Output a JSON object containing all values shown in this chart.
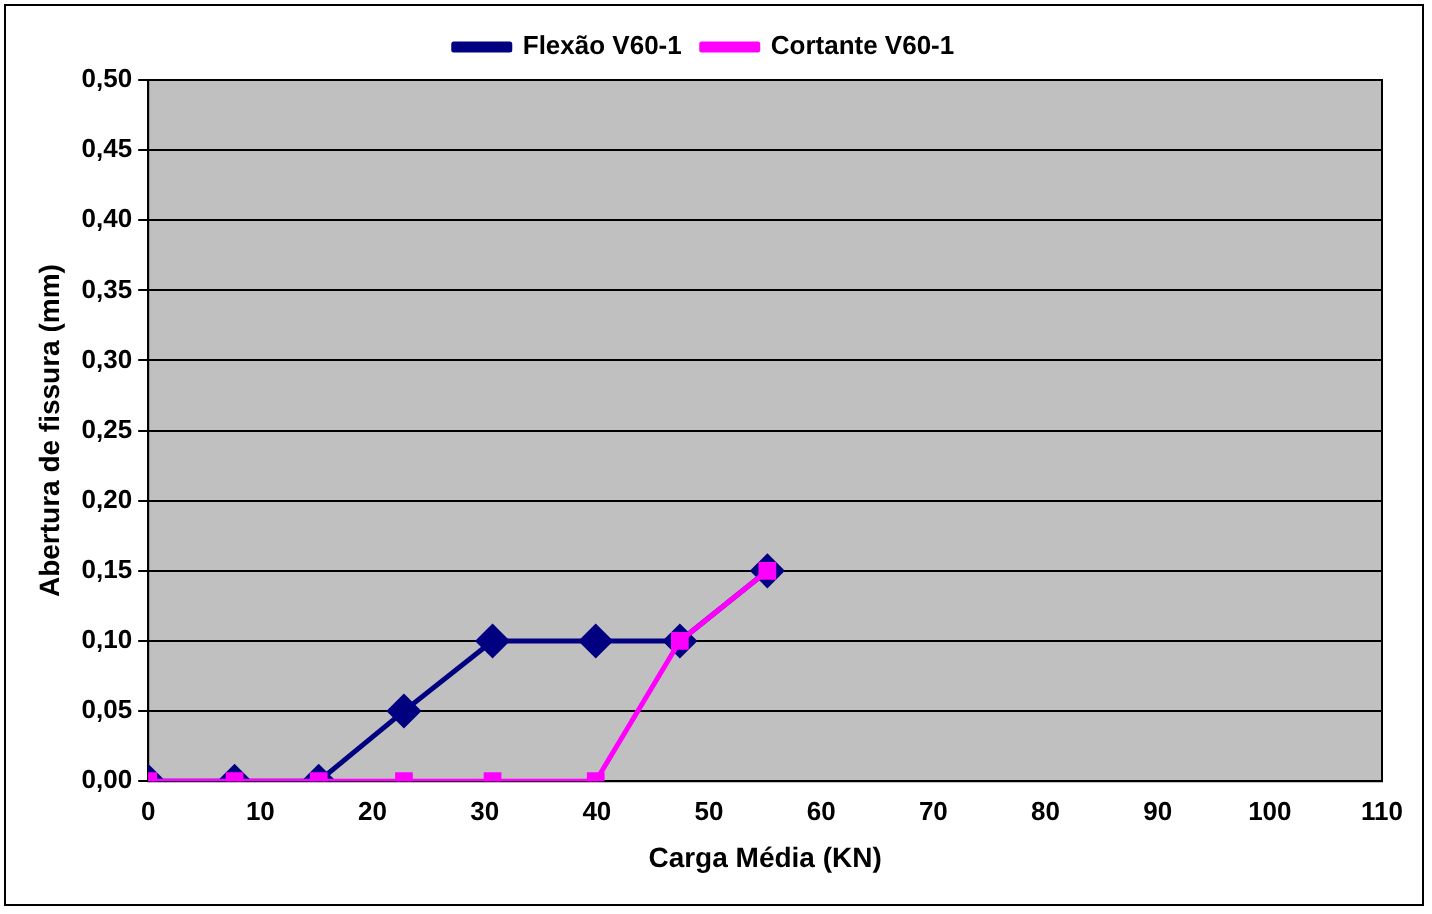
{
  "chart_data": {
    "type": "line",
    "xlabel": "Carga Média (KN)",
    "ylabel": "Abertura de fissura (mm)",
    "x": [
      0,
      7.7,
      15.2,
      22.8,
      30.7,
      39.9,
      47.4,
      55.2
    ],
    "series": [
      {
        "name": "Flexão V60-1",
        "color": "#000080",
        "marker": "diamond",
        "values": [
          0,
          0,
          0,
          0.05,
          0.1,
          0.1,
          0.1,
          0.15
        ]
      },
      {
        "name": "Cortante V60-1",
        "color": "#ff00ff",
        "marker": "square",
        "values": [
          0,
          0,
          0,
          0,
          0,
          0,
          0.1,
          0.15
        ]
      }
    ],
    "xlim": [
      0,
      110
    ],
    "xticks": [
      0,
      10,
      20,
      30,
      40,
      50,
      60,
      70,
      80,
      90,
      100,
      110
    ],
    "ylim": [
      0,
      0.5
    ],
    "yticks": [
      {
        "value": 0,
        "label": "0,00"
      },
      {
        "value": 0.05,
        "label": "0,05"
      },
      {
        "value": 0.1,
        "label": "0,10"
      },
      {
        "value": 0.15,
        "label": "0,15"
      },
      {
        "value": 0.2,
        "label": "0,20"
      },
      {
        "value": 0.25,
        "label": "0,25"
      },
      {
        "value": 0.3,
        "label": "0,30"
      },
      {
        "value": 0.35,
        "label": "0,35"
      },
      {
        "value": 0.4,
        "label": "0,40"
      },
      {
        "value": 0.45,
        "label": "0,45"
      },
      {
        "value": 0.5,
        "label": "0,50"
      }
    ],
    "grid": "y",
    "legend": "top"
  }
}
